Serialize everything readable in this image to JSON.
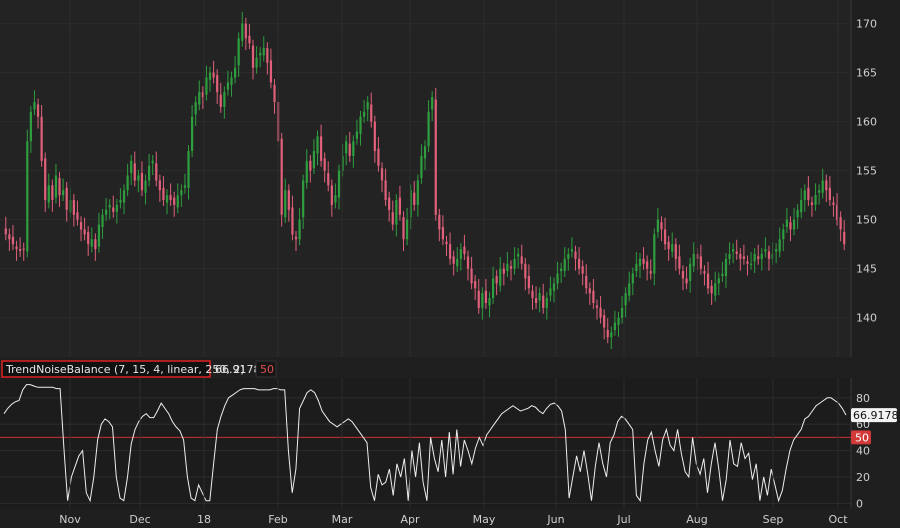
{
  "chart_data": [
    {
      "type": "candlestick",
      "y_ticks": [
        140,
        145,
        150,
        155,
        160,
        165,
        170
      ],
      "ylim": [
        136.5,
        172
      ],
      "x_ticks": [
        "Nov",
        "Dec",
        "18",
        "Feb",
        "Mar",
        "Apr",
        "May",
        "Jun",
        "Jul",
        "Aug",
        "Sep",
        "Oct"
      ],
      "up_color": "#2e9e3e",
      "down_color": "#e0607a",
      "closes": [
        148.5,
        148.0,
        147.5,
        147.0,
        146.8,
        147.0,
        158.0,
        161.0,
        162.0,
        160.5,
        156.0,
        152.0,
        153.5,
        152.0,
        154.5,
        152.5,
        153.0,
        151.0,
        152.0,
        150.5,
        150.0,
        149.0,
        148.5,
        147.5,
        148.0,
        147.0,
        149.5,
        150.5,
        151.0,
        151.5,
        150.8,
        151.5,
        152.0,
        153.0,
        154.5,
        156.0,
        154.0,
        154.5,
        153.0,
        154.0,
        155.5,
        156.0,
        154.0,
        153.0,
        152.0,
        152.5,
        152.0,
        151.5,
        152.5,
        153.0,
        153.5,
        157.0,
        160.5,
        162.0,
        163.0,
        162.5,
        164.5,
        165.0,
        164.5,
        163.0,
        161.5,
        163.0,
        164.0,
        164.5,
        165.5,
        168.5,
        170.0,
        168.5,
        168.0,
        165.5,
        166.5,
        167.0,
        167.5,
        166.0,
        164.0,
        162.0,
        158.0,
        150.5,
        153.0,
        151.0,
        148.5,
        148.0,
        150.0,
        154.0,
        156.0,
        155.0,
        157.0,
        158.5,
        156.0,
        155.0,
        153.5,
        151.5,
        152.5,
        155.0,
        156.5,
        158.0,
        156.5,
        158.0,
        159.0,
        160.5,
        161.0,
        162.0,
        160.0,
        157.0,
        155.5,
        154.0,
        152.0,
        151.0,
        149.5,
        152.0,
        150.5,
        148.0,
        150.0,
        153.0,
        151.5,
        154.0,
        156.5,
        157.5,
        161.0,
        162.5,
        150.5,
        149.0,
        148.0,
        147.5,
        146.0,
        145.5,
        146.0,
        147.0,
        146.5,
        145.0,
        143.5,
        143.0,
        141.0,
        142.5,
        141.5,
        142.0,
        144.0,
        143.5,
        145.0,
        144.5,
        145.5,
        145.0,
        146.0,
        146.5,
        145.5,
        144.0,
        143.0,
        142.0,
        141.5,
        142.5,
        141.0,
        142.0,
        143.0,
        143.5,
        144.5,
        145.0,
        146.0,
        146.5,
        147.0,
        146.0,
        145.0,
        144.5,
        143.0,
        142.5,
        141.5,
        141.0,
        140.0,
        139.0,
        138.0,
        138.5,
        139.5,
        140.0,
        141.0,
        142.5,
        143.5,
        144.5,
        145.5,
        146.0,
        145.5,
        145.0,
        144.5,
        148.5,
        150.0,
        149.0,
        147.5,
        147.0,
        147.5,
        146.0,
        145.0,
        144.0,
        143.5,
        145.5,
        146.5,
        146.0,
        145.0,
        144.5,
        143.0,
        142.5,
        143.5,
        144.0,
        144.5,
        146.0,
        146.5,
        147.0,
        146.5,
        146.0,
        146.0,
        145.5,
        145.5,
        146.5,
        146.0,
        146.5,
        147.0,
        146.0,
        146.5,
        147.0,
        148.0,
        149.0,
        150.0,
        149.0,
        150.0,
        151.0,
        152.0,
        153.0,
        152.0,
        151.5,
        152.5,
        153.0,
        154.0,
        153.0,
        152.0,
        151.5,
        150.0,
        149.0,
        147.5
      ],
      "minor_wicks": [
        0.6,
        1.2
      ]
    },
    {
      "type": "line",
      "indicator_name": "TrendNoiseBalance (7, 15, 4, linear, 250, 2)",
      "current_value": "66.9178",
      "level_value": "50",
      "level": 50,
      "y_ticks": [
        0,
        20,
        40,
        60,
        80
      ],
      "ylim": [
        -2,
        92
      ],
      "line_color": "#eeeeee",
      "level_color": "#c83232",
      "values": [
        68,
        72,
        75,
        77,
        78,
        86,
        90,
        90,
        89,
        88,
        88,
        88,
        88,
        88,
        87,
        87,
        42,
        2,
        20,
        28,
        36,
        40,
        8,
        2,
        20,
        48,
        60,
        64,
        62,
        58,
        20,
        4,
        2,
        20,
        45,
        56,
        62,
        66,
        68,
        65,
        65,
        70,
        76,
        72,
        68,
        62,
        58,
        55,
        48,
        20,
        4,
        2,
        14,
        8,
        2,
        2,
        30,
        56,
        66,
        74,
        80,
        82,
        84,
        86,
        87,
        87,
        87,
        87,
        86,
        86,
        86,
        86,
        87,
        87,
        86,
        86,
        40,
        8,
        26,
        72,
        78,
        84,
        86,
        84,
        78,
        70,
        66,
        62,
        60,
        58,
        60,
        62,
        64,
        62,
        58,
        54,
        50,
        46,
        12,
        2,
        22,
        14,
        16,
        26,
        6,
        30,
        20,
        34,
        2,
        40,
        20,
        46,
        16,
        2,
        50,
        34,
        24,
        48,
        20,
        54,
        22,
        56,
        28,
        48,
        40,
        30,
        42,
        50,
        44,
        52,
        56,
        60,
        64,
        68,
        70,
        72,
        74,
        72,
        70,
        71,
        72,
        74,
        73,
        70,
        68,
        72,
        75,
        76,
        74,
        70,
        56,
        4,
        20,
        36,
        24,
        40,
        22,
        2,
        28,
        46,
        30,
        20,
        46,
        52,
        62,
        66,
        64,
        60,
        56,
        6,
        2,
        30,
        48,
        54,
        40,
        28,
        48,
        56,
        44,
        40,
        56,
        38,
        24,
        20,
        50,
        30,
        22,
        34,
        8,
        30,
        46,
        26,
        2,
        18,
        48,
        30,
        28,
        46,
        34,
        38,
        18,
        30,
        2,
        20,
        6,
        26,
        14,
        2,
        10,
        26,
        40,
        48,
        52,
        56,
        64,
        66,
        70,
        74,
        76,
        78,
        80,
        80,
        78,
        76,
        72,
        67
      ]
    }
  ]
}
